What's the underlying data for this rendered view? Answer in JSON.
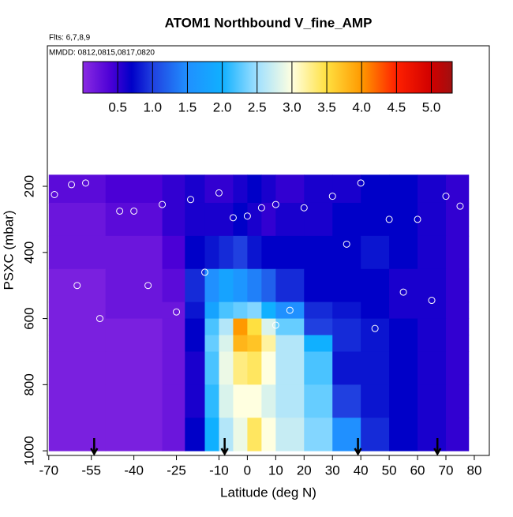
{
  "chart_data": {
    "type": "heatmap",
    "title": "ATOM1 Northbound V_fine_AMP",
    "subtitle": "Flts: 6,7,8,9",
    "annotation": "MMDD: 0812,0815,0817,0820",
    "x_label": "Latitude (deg N)",
    "y_label": "PSXC (mbar)",
    "xlim": [
      -70.5,
      85.3
    ],
    "ylim": [
      1014,
      -225
    ],
    "xticks": [
      -70,
      -55,
      -40,
      -25,
      -10,
      0,
      10,
      20,
      30,
      40,
      50,
      60,
      70,
      80
    ],
    "yticks": [
      200,
      400,
      600,
      800,
      1000
    ],
    "x_edges": [
      -70,
      -50,
      -30,
      -22,
      -15,
      -10,
      -5,
      0,
      5,
      10,
      20,
      30,
      40,
      50,
      60,
      70,
      78
    ],
    "y_edges": [
      165,
      250,
      350,
      450,
      550,
      600,
      650,
      700,
      800,
      900,
      1000
    ],
    "z": [
      [
        0.3,
        0.4,
        0.5,
        0.6,
        0.5,
        0.5,
        0.6,
        0.7,
        0.6,
        0.5,
        0.6,
        0.6,
        0.7,
        0.7,
        0.6,
        0.5
      ],
      [
        0.2,
        0.3,
        0.5,
        0.6,
        0.6,
        0.6,
        0.7,
        0.6,
        0.5,
        0.6,
        0.6,
        0.7,
        0.7,
        0.7,
        0.6,
        0.5
      ],
      [
        0.2,
        0.2,
        0.4,
        0.7,
        0.8,
        0.9,
        1.0,
        0.8,
        0.7,
        0.7,
        0.7,
        0.7,
        0.8,
        0.7,
        0.6,
        0.5
      ],
      [
        0.1,
        0.2,
        0.3,
        0.9,
        1.5,
        1.8,
        1.6,
        1.4,
        1.2,
        0.9,
        0.7,
        0.7,
        0.7,
        0.6,
        0.6,
        0.5
      ],
      [
        0.1,
        0.2,
        0.2,
        0.8,
        1.8,
        2.2,
        2.3,
        2.4,
        2.0,
        1.5,
        0.9,
        0.8,
        0.7,
        0.6,
        0.6,
        0.5
      ],
      [
        0.1,
        0.1,
        0.2,
        0.7,
        2.2,
        2.6,
        4.0,
        3.5,
        2.8,
        2.3,
        1.0,
        0.9,
        0.8,
        0.7,
        0.6,
        0.5
      ],
      [
        0.1,
        0.1,
        0.2,
        0.7,
        2.3,
        2.8,
        3.8,
        3.7,
        3.2,
        2.6,
        2.0,
        0.9,
        0.8,
        0.7,
        0.6,
        0.5
      ],
      [
        0.1,
        0.1,
        0.2,
        0.6,
        2.2,
        2.9,
        3.3,
        3.4,
        3.0,
        2.6,
        2.2,
        0.8,
        0.8,
        0.7,
        0.6,
        0.5
      ],
      [
        0.1,
        0.1,
        0.2,
        0.6,
        2.1,
        2.8,
        3.0,
        3.0,
        2.8,
        2.6,
        2.3,
        1.0,
        0.8,
        0.7,
        0.6,
        0.5
      ],
      [
        0.1,
        0.1,
        0.2,
        0.7,
        2.0,
        2.6,
        2.9,
        3.4,
        3.0,
        2.7,
        2.4,
        1.5,
        0.9,
        0.7,
        0.6,
        0.5
      ]
    ],
    "clim": [
      0,
      5.3
    ],
    "cticks": [
      0.5,
      {
        "value": 1,
        "label": "1.0"
      },
      1.5,
      {
        "value": 2,
        "label": "2.0"
      },
      2.5,
      {
        "value": 3,
        "label": "3.0"
      },
      3.5,
      {
        "value": 4,
        "label": "4.0"
      },
      4.5,
      {
        "value": 5,
        "label": "5.0"
      }
    ],
    "colorscale": [
      [
        0,
        "#8a2be2"
      ],
      [
        0.4,
        "#4b00d6"
      ],
      [
        0.7,
        "#0000c8"
      ],
      [
        1.0,
        "#2040e0"
      ],
      [
        1.5,
        "#2090ff"
      ],
      [
        2.0,
        "#10b0ff"
      ],
      [
        2.5,
        "#a0e0ff"
      ],
      [
        3.0,
        "#ffffe0"
      ],
      [
        3.5,
        "#ffe040"
      ],
      [
        4.0,
        "#ff9900"
      ],
      [
        4.5,
        "#ff2000"
      ],
      [
        5.0,
        "#d00000"
      ],
      [
        5.3,
        "#a01010"
      ]
    ],
    "points": {
      "x": [
        -68,
        -62,
        -57,
        -45,
        -40,
        -30,
        -20,
        -10,
        -5,
        0,
        5,
        10,
        20,
        30,
        40,
        50,
        60,
        70,
        75,
        -52,
        -35,
        -15,
        15,
        35,
        55,
        65,
        -60,
        -25,
        10,
        45
      ],
      "y": [
        225,
        195,
        190,
        275,
        275,
        255,
        240,
        220,
        295,
        290,
        265,
        255,
        265,
        230,
        190,
        300,
        300,
        230,
        260,
        600,
        500,
        460,
        575,
        375,
        520,
        545,
        500,
        580,
        620,
        630
      ],
      "color": "#ffffff"
    },
    "arrows": [
      -54,
      -8,
      39,
      67
    ]
  }
}
